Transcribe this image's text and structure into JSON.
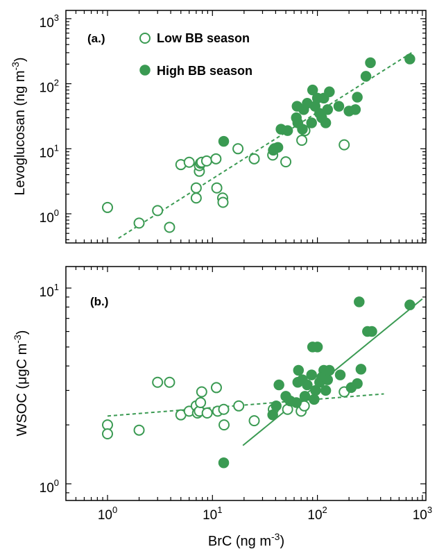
{
  "colors": {
    "series": "#3a9a52",
    "axis": "#000000"
  },
  "x_axis": {
    "label": "BrC  (ng m",
    "label_sup": "-3",
    "label_tail": ")",
    "ticks": [
      1,
      10,
      100,
      1000
    ],
    "tick_labels": [
      {
        "base": "10",
        "exp": "0"
      },
      {
        "base": "10",
        "exp": "1"
      },
      {
        "base": "10",
        "exp": "2"
      },
      {
        "base": "10",
        "exp": "3"
      }
    ]
  },
  "chart_data": [
    {
      "type": "scatter",
      "panel_label": "(a.)",
      "xscale": "log",
      "yscale": "log",
      "xlim": [
        0.4,
        1100
      ],
      "ylim": [
        0.4,
        1000
      ],
      "ylabel": "Levoglucosan  (ng m",
      "ylabel_sup": "-3",
      "ylabel_tail": ")",
      "yticks": [
        1,
        10,
        100,
        1000
      ],
      "ytick_labels": [
        {
          "base": "10",
          "exp": "0"
        },
        {
          "base": "10",
          "exp": "1"
        },
        {
          "base": "10",
          "exp": "2"
        },
        {
          "base": "10",
          "exp": "3"
        }
      ],
      "legend": [
        {
          "label": "Low BB season",
          "marker": "open-circle"
        },
        {
          "label": "High BB season",
          "marker": "filled-circle"
        }
      ],
      "series": [
        {
          "name": "Low BB season",
          "marker": "open",
          "points": [
            [
              1.0,
              1.25
            ],
            [
              2.0,
              0.72
            ],
            [
              3.0,
              1.12
            ],
            [
              3.9,
              0.62
            ],
            [
              5.0,
              5.7
            ],
            [
              6.0,
              6.2
            ],
            [
              7.0,
              2.5
            ],
            [
              7.0,
              1.75
            ],
            [
              7.5,
              4.5
            ],
            [
              7.5,
              5.5
            ],
            [
              7.7,
              6.0
            ],
            [
              7.9,
              6.2
            ],
            [
              8.8,
              6.5
            ],
            [
              10.8,
              7.0
            ],
            [
              11.0,
              2.5
            ],
            [
              12.5,
              1.75
            ],
            [
              12.6,
              1.5
            ],
            [
              17.5,
              10.0
            ],
            [
              25.0,
              7.0
            ],
            [
              37.5,
              8.0
            ],
            [
              39.0,
              10.0
            ],
            [
              50.0,
              6.3
            ],
            [
              71.0,
              13.5
            ],
            [
              76.0,
              19.0
            ],
            [
              180.0,
              11.5
            ]
          ]
        },
        {
          "name": "High BB season",
          "marker": "filled",
          "points": [
            [
              12.8,
              13.0
            ],
            [
              38.0,
              9.5
            ],
            [
              42.0,
              10.5
            ],
            [
              45.0,
              20.0
            ],
            [
              52.0,
              19.0
            ],
            [
              63.0,
              30.0
            ],
            [
              64.0,
              45.0
            ],
            [
              65.0,
              25.0
            ],
            [
              72.0,
              20.0
            ],
            [
              74.0,
              40.0
            ],
            [
              80.0,
              50.0
            ],
            [
              88.0,
              25.0
            ],
            [
              90.0,
              80.0
            ],
            [
              95.0,
              45.0
            ],
            [
              100.0,
              60.0
            ],
            [
              105.0,
              35.0
            ],
            [
              110.0,
              30.0
            ],
            [
              115.0,
              60.0
            ],
            [
              120.0,
              25.0
            ],
            [
              125.0,
              40.0
            ],
            [
              130.0,
              75.0
            ],
            [
              160.0,
              45.0
            ],
            [
              200.0,
              38.0
            ],
            [
              230.0,
              40.0
            ],
            [
              240.0,
              62.0
            ],
            [
              290.0,
              130.0
            ],
            [
              320.0,
              210.0
            ],
            [
              760.0,
              240.0
            ]
          ]
        }
      ],
      "fits": [
        {
          "style": "dashed",
          "x": [
            1.27,
            790
          ],
          "y": [
            0.42,
            300
          ]
        }
      ]
    },
    {
      "type": "scatter",
      "panel_label": "(b.)",
      "xscale": "log",
      "yscale": "log",
      "xlim": [
        0.4,
        1100
      ],
      "ylim": [
        0.8,
        12
      ],
      "ylabel": "WSOC  (μgC m",
      "ylabel_sup": "-3",
      "ylabel_tail": ")",
      "yticks": [
        1,
        10
      ],
      "ytick_labels": [
        {
          "base": "10",
          "exp": "0"
        },
        {
          "base": "10",
          "exp": "1"
        }
      ],
      "minor_yticks": [
        0.9,
        2,
        3,
        4,
        5,
        6,
        7,
        8,
        9,
        11
      ],
      "series": [
        {
          "name": "Low BB season",
          "marker": "open",
          "points": [
            [
              1.0,
              2.0
            ],
            [
              1.0,
              1.8
            ],
            [
              2.0,
              1.88
            ],
            [
              3.0,
              3.3
            ],
            [
              3.9,
              3.3
            ],
            [
              5.0,
              2.25
            ],
            [
              6.0,
              2.35
            ],
            [
              7.0,
              2.5
            ],
            [
              7.2,
              2.3
            ],
            [
              7.5,
              2.35
            ],
            [
              7.7,
              2.6
            ],
            [
              7.9,
              2.95
            ],
            [
              8.9,
              2.3
            ],
            [
              10.9,
              3.1
            ],
            [
              11.2,
              2.35
            ],
            [
              12.8,
              2.4
            ],
            [
              12.9,
              2.0
            ],
            [
              17.8,
              2.5
            ],
            [
              25.0,
              2.1
            ],
            [
              38.0,
              2.4
            ],
            [
              52.0,
              2.4
            ],
            [
              70.0,
              2.35
            ],
            [
              75.0,
              2.5
            ],
            [
              180.0,
              2.95
            ]
          ]
        },
        {
          "name": "High BB season",
          "marker": "filled",
          "points": [
            [
              12.8,
              1.28
            ],
            [
              37.5,
              2.25
            ],
            [
              40.5,
              2.5
            ],
            [
              43.0,
              3.2
            ],
            [
              50.0,
              2.8
            ],
            [
              55.0,
              2.65
            ],
            [
              63.0,
              2.6
            ],
            [
              65.0,
              3.3
            ],
            [
              66.0,
              3.8
            ],
            [
              72.0,
              3.4
            ],
            [
              76.0,
              2.8
            ],
            [
              80.0,
              3.2
            ],
            [
              88.0,
              3.6
            ],
            [
              90.0,
              5.0
            ],
            [
              93.0,
              2.7
            ],
            [
              96.0,
              3.0
            ],
            [
              100.0,
              5.0
            ],
            [
              105.0,
              3.3
            ],
            [
              110.0,
              3.5
            ],
            [
              115.0,
              3.8
            ],
            [
              118.0,
              3.6
            ],
            [
              120.0,
              3.0
            ],
            [
              125.0,
              3.4
            ],
            [
              130.0,
              3.8
            ],
            [
              165.0,
              3.6
            ],
            [
              210.0,
              3.1
            ],
            [
              240.0,
              3.25
            ],
            [
              250.0,
              8.5
            ],
            [
              260.0,
              3.85
            ],
            [
              300.0,
              6.0
            ],
            [
              330.0,
              6.0
            ],
            [
              760.0,
              8.2
            ]
          ]
        }
      ],
      "fits": [
        {
          "style": "dashed",
          "x": [
            1.0,
            430
          ],
          "y": [
            2.22,
            2.88
          ]
        },
        {
          "style": "solid",
          "x": [
            19.5,
            1000
          ],
          "y": [
            1.57,
            8.8
          ]
        }
      ]
    }
  ]
}
